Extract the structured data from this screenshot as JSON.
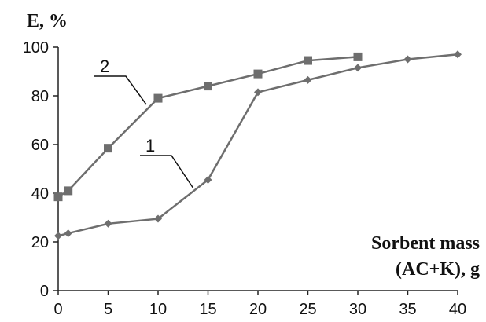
{
  "chart_data": {
    "type": "line",
    "ylabel": "E, %",
    "xlabel_lines": [
      "Sorbent mass",
      "(AC+K), g"
    ],
    "xlim": [
      0,
      40
    ],
    "ylim": [
      0,
      100
    ],
    "x_ticks": [
      0,
      5,
      10,
      15,
      20,
      25,
      30,
      35,
      40
    ],
    "y_ticks": [
      0,
      20,
      40,
      60,
      80,
      100
    ],
    "grid": false,
    "series": [
      {
        "name": "1",
        "marker": "diamond",
        "color": "#6e6e6e",
        "x": [
          0,
          1,
          5,
          10,
          15,
          20,
          25,
          30,
          35,
          40
        ],
        "y": [
          22.5,
          23.5,
          27.5,
          29.5,
          45.5,
          81.5,
          86.5,
          91.5,
          95,
          97
        ]
      },
      {
        "name": "2",
        "marker": "square",
        "color": "#6e6e6e",
        "x": [
          0,
          1,
          5,
          10,
          15,
          20,
          25,
          30
        ],
        "y": [
          38.5,
          41,
          58.5,
          79,
          84,
          89,
          94.5,
          96
        ]
      }
    ]
  }
}
